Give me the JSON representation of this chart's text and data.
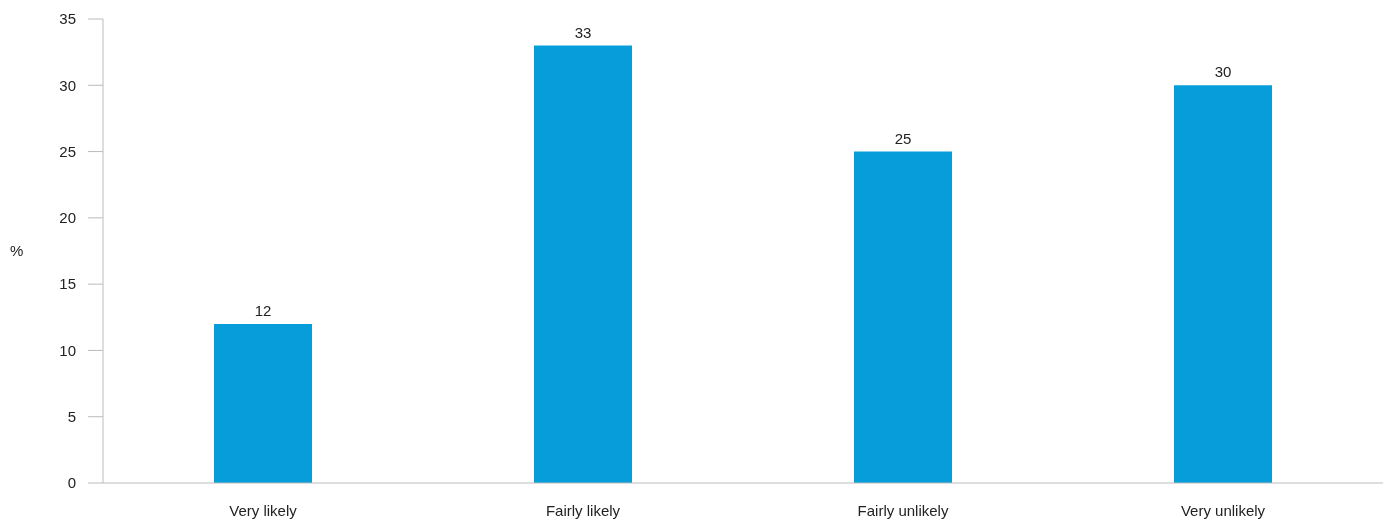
{
  "chart_data": {
    "type": "bar",
    "ylabel": "%",
    "categories": [
      "Very likely",
      "Fairly likely",
      "Fairly unlikely",
      "Very unlikely"
    ],
    "values": [
      12,
      33,
      25,
      30
    ],
    "color": "#079ddb",
    "ylim": [
      0,
      35
    ],
    "yticks": [
      0,
      5,
      10,
      15,
      20,
      25,
      30,
      35
    ],
    "data_labels": true,
    "grid": false
  }
}
